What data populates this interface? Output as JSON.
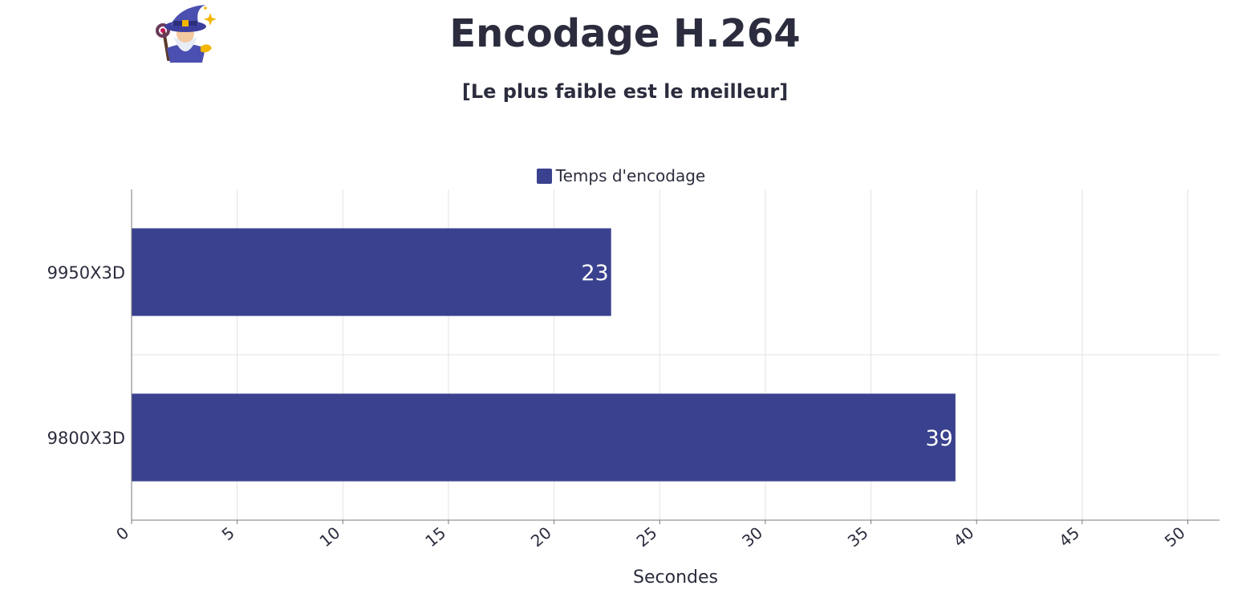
{
  "header": {
    "title": "Encodage H.264",
    "subtitle": "[Le plus faible est le meilleur]"
  },
  "colors": {
    "bar": "#3a418e",
    "text": "#2b2d3e",
    "grid": "#e2e2e2",
    "axis": "#7a7a7a"
  },
  "icons": {
    "logo": "wizard-icon"
  },
  "chart_data": {
    "type": "bar",
    "orientation": "horizontal",
    "categories": [
      "9950X3D",
      "9800X3D"
    ],
    "series": [
      {
        "name": "Temps d'encodage",
        "values": [
          22.7,
          39.0
        ],
        "labels": [
          "23",
          "39"
        ]
      }
    ],
    "xlabel": "Secondes",
    "ylabel": "",
    "xlim": [
      0,
      51.5
    ],
    "xticks": [
      0,
      5,
      10,
      15,
      20,
      25,
      30,
      35,
      40,
      45,
      50
    ],
    "grid": true,
    "legend": "top-center"
  }
}
